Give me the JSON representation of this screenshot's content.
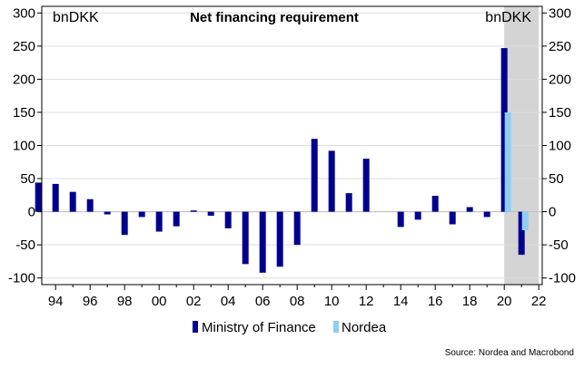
{
  "chart_data": {
    "type": "bar",
    "title": "Net financing requirement",
    "unit_left": "bnDKK",
    "unit_right": "bnDKK",
    "source": "Source: Nordea and Macrobond",
    "ylim": [
      -110,
      310
    ],
    "xlim": [
      1993.2,
      2022.2
    ],
    "y_ticks": [
      300,
      250,
      200,
      150,
      100,
      50,
      0,
      -50,
      -100
    ],
    "x_ticks": [
      {
        "value": 1994,
        "label": "94"
      },
      {
        "value": 1996,
        "label": "96"
      },
      {
        "value": 1998,
        "label": "98"
      },
      {
        "value": 2000,
        "label": "00"
      },
      {
        "value": 2002,
        "label": "02"
      },
      {
        "value": 2004,
        "label": "04"
      },
      {
        "value": 2006,
        "label": "06"
      },
      {
        "value": 2008,
        "label": "08"
      },
      {
        "value": 2010,
        "label": "10"
      },
      {
        "value": 2012,
        "label": "12"
      },
      {
        "value": 2014,
        "label": "14"
      },
      {
        "value": 2016,
        "label": "16"
      },
      {
        "value": 2018,
        "label": "18"
      },
      {
        "value": 2020,
        "label": "20"
      },
      {
        "value": 2022,
        "label": "22"
      }
    ],
    "shaded_region": [
      2020,
      2022
    ],
    "grid": true,
    "legend_position": "bottom",
    "series": [
      {
        "name": "Ministry of Finance",
        "color": "#00008f",
        "x": [
          1993,
          1994,
          1995,
          1996,
          1997,
          1998,
          1999,
          2000,
          2001,
          2002,
          2003,
          2004,
          2005,
          2006,
          2007,
          2008,
          2009,
          2010,
          2011,
          2012,
          2013,
          2014,
          2015,
          2016,
          2017,
          2018,
          2019,
          2020,
          2021
        ],
        "values": [
          44,
          42,
          30,
          19,
          -4,
          -35,
          -8,
          -30,
          -22,
          2,
          -6,
          -25,
          -79,
          -92,
          -83,
          -50,
          110,
          92,
          28,
          80,
          0,
          -23,
          -12,
          24,
          -19,
          7,
          -8,
          247,
          -65
        ]
      },
      {
        "name": "Nordea",
        "color": "#8fcdf5",
        "x": [
          2020,
          2021
        ],
        "values": [
          150,
          -28
        ]
      }
    ]
  }
}
